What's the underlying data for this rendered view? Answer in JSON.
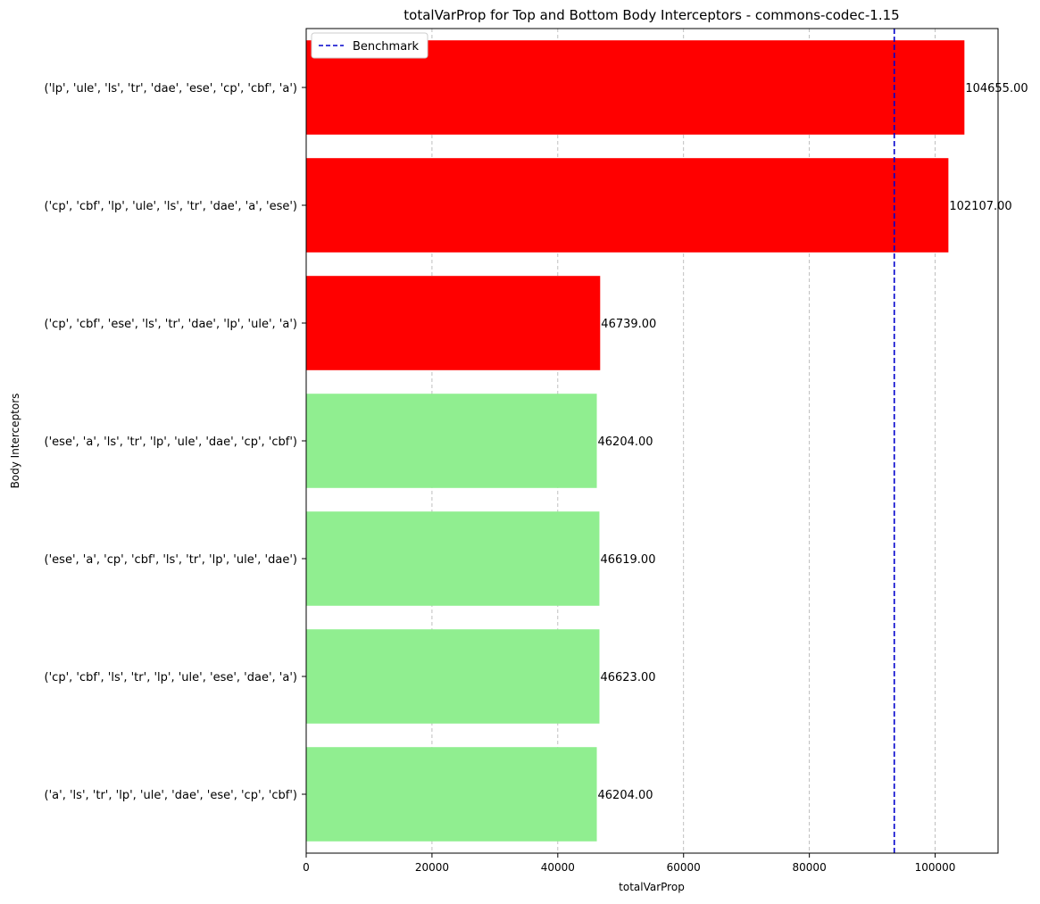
{
  "chart_data": {
    "type": "bar",
    "orientation": "horizontal",
    "title": "totalVarProp for Top and Bottom Body Interceptors - commons-codec-1.15",
    "xlabel": "totalVarProp",
    "ylabel": "Body Interceptors",
    "xlim": [
      0,
      110000
    ],
    "xticks": [
      0,
      20000,
      40000,
      60000,
      80000,
      100000
    ],
    "grid": {
      "x": true,
      "y": false,
      "style": "dashed"
    },
    "legend": {
      "placement": "top-left",
      "entries": [
        "Benchmark"
      ]
    },
    "benchmark": {
      "label": "Benchmark",
      "value": 93500,
      "color": "#0000cc",
      "style": "dashed"
    },
    "categories": [
      "('lp', 'ule', 'ls', 'tr', 'dae', 'ese', 'cp', 'cbf', 'a')",
      "('cp', 'cbf', 'lp', 'ule', 'ls', 'tr', 'dae', 'a', 'ese')",
      "('cp', 'cbf', 'ese', 'ls', 'tr', 'dae', 'lp', 'ule', 'a')",
      "('ese', 'a', 'ls', 'tr', 'lp', 'ule', 'dae', 'cp', 'cbf')",
      "('ese', 'a', 'cp', 'cbf', 'ls', 'tr', 'lp', 'ule', 'dae')",
      "('cp', 'cbf', 'ls', 'tr', 'lp', 'ule', 'ese', 'dae', 'a')",
      "('a', 'ls', 'tr', 'lp', 'ule', 'dae', 'ese', 'cp', 'cbf')"
    ],
    "values": [
      104655,
      102107,
      46739,
      46204,
      46619,
      46623,
      46204
    ],
    "value_labels": [
      "104655.00",
      "102107.00",
      "46739.00",
      "46204.00",
      "46619.00",
      "46623.00",
      "46204.00"
    ],
    "bar_colors": [
      "#ff0000",
      "#ff0000",
      "#ff0000",
      "#90ee90",
      "#90ee90",
      "#90ee90",
      "#90ee90"
    ]
  }
}
